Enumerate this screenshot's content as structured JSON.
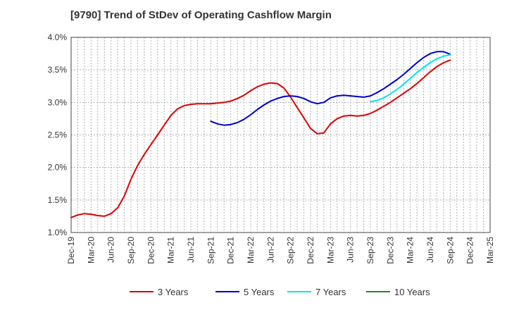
{
  "chart_data": {
    "type": "line",
    "title": "[9790]  Trend of StDev of Operating Cashflow Margin",
    "xlabel": "",
    "ylabel": "",
    "ylim": [
      1.0,
      4.0
    ],
    "yticks": [
      "1.0%",
      "1.5%",
      "2.0%",
      "2.5%",
      "3.0%",
      "3.5%",
      "4.0%"
    ],
    "yunit": "%",
    "xlim": [
      "Dec-19",
      "Mar-25"
    ],
    "xticks": [
      "Dec-19",
      "Mar-20",
      "Jun-20",
      "Sep-20",
      "Dec-20",
      "Mar-21",
      "Jun-21",
      "Sep-21",
      "Dec-21",
      "Mar-22",
      "Jun-22",
      "Sep-22",
      "Dec-22",
      "Mar-23",
      "Jun-23",
      "Sep-23",
      "Dec-23",
      "Mar-24",
      "Jun-24",
      "Sep-24",
      "Dec-24",
      "Mar-25"
    ],
    "grid": true,
    "legend_position": "bottom",
    "series": [
      {
        "name": "3 Years",
        "color": "#dd0000",
        "x": [
          "Dec-19",
          "Jan-20",
          "Feb-20",
          "Mar-20",
          "Apr-20",
          "May-20",
          "Jun-20",
          "Jul-20",
          "Aug-20",
          "Sep-20",
          "Oct-20",
          "Nov-20",
          "Dec-20",
          "Jan-21",
          "Feb-21",
          "Mar-21",
          "Apr-21",
          "May-21",
          "Jun-21",
          "Jul-21",
          "Aug-21",
          "Sep-21",
          "Oct-21",
          "Nov-21",
          "Dec-21",
          "Jan-22",
          "Feb-22",
          "Mar-22",
          "Apr-22",
          "May-22",
          "Jun-22",
          "Jul-22",
          "Aug-22",
          "Sep-22",
          "Oct-22",
          "Nov-22",
          "Dec-22",
          "Jan-23",
          "Feb-23",
          "Mar-23",
          "Apr-23",
          "May-23",
          "Jun-23",
          "Jul-23",
          "Aug-23",
          "Sep-23",
          "Oct-23",
          "Nov-23",
          "Dec-23",
          "Jan-24",
          "Feb-24",
          "Mar-24",
          "Apr-24",
          "May-24",
          "Jun-24",
          "Jul-24",
          "Aug-24",
          "Sep-24"
        ],
        "values": [
          1.23,
          1.27,
          1.29,
          1.28,
          1.26,
          1.25,
          1.29,
          1.38,
          1.56,
          1.82,
          2.03,
          2.2,
          2.35,
          2.5,
          2.65,
          2.8,
          2.9,
          2.95,
          2.97,
          2.98,
          2.98,
          2.98,
          2.99,
          3.0,
          3.02,
          3.06,
          3.11,
          3.18,
          3.24,
          3.28,
          3.3,
          3.29,
          3.22,
          3.08,
          2.92,
          2.76,
          2.6,
          2.52,
          2.53,
          2.67,
          2.75,
          2.79,
          2.8,
          2.79,
          2.8,
          2.83,
          2.88,
          2.94,
          3.0,
          3.07,
          3.14,
          3.21,
          3.29,
          3.38,
          3.47,
          3.55,
          3.61,
          3.65
        ]
      },
      {
        "name": "5 Years",
        "color": "#0000cc",
        "x": [
          "Sep-21",
          "Oct-21",
          "Nov-21",
          "Dec-21",
          "Jan-22",
          "Feb-22",
          "Mar-22",
          "Apr-22",
          "May-22",
          "Jun-22",
          "Jul-22",
          "Aug-22",
          "Sep-22",
          "Oct-22",
          "Nov-22",
          "Dec-22",
          "Jan-23",
          "Feb-23",
          "Mar-23",
          "Apr-23",
          "May-23",
          "Jun-23",
          "Jul-23",
          "Aug-23",
          "Sep-23",
          "Oct-23",
          "Nov-23",
          "Dec-23",
          "Jan-24",
          "Feb-24",
          "Mar-24",
          "Apr-24",
          "May-24",
          "Jun-24",
          "Jul-24",
          "Aug-24",
          "Sep-24"
        ],
        "values": [
          2.71,
          2.67,
          2.65,
          2.66,
          2.69,
          2.74,
          2.81,
          2.89,
          2.96,
          3.02,
          3.06,
          3.09,
          3.1,
          3.09,
          3.06,
          3.01,
          2.98,
          3.0,
          3.07,
          3.1,
          3.11,
          3.1,
          3.09,
          3.08,
          3.1,
          3.15,
          3.21,
          3.28,
          3.35,
          3.43,
          3.52,
          3.61,
          3.69,
          3.75,
          3.78,
          3.78,
          3.74
        ]
      },
      {
        "name": "7 Years",
        "color": "#00e5ee",
        "x": [
          "Sep-23",
          "Oct-23",
          "Nov-23",
          "Dec-23",
          "Jan-24",
          "Feb-24",
          "Mar-24",
          "Apr-24",
          "May-24",
          "Jun-24",
          "Jul-24",
          "Aug-24",
          "Sep-24"
        ],
        "values": [
          3.01,
          3.03,
          3.07,
          3.13,
          3.2,
          3.28,
          3.37,
          3.46,
          3.54,
          3.61,
          3.67,
          3.71,
          3.73
        ]
      },
      {
        "name": "10 Years",
        "color": "#228b22",
        "x": [],
        "values": []
      }
    ]
  }
}
